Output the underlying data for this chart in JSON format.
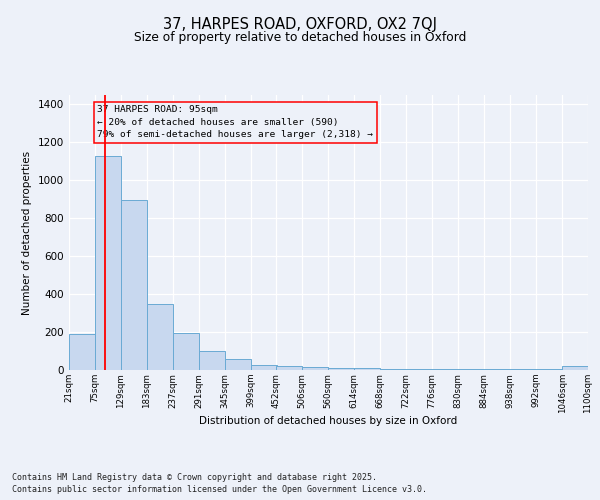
{
  "title1": "37, HARPES ROAD, OXFORD, OX2 7QJ",
  "title2": "Size of property relative to detached houses in Oxford",
  "xlabel": "Distribution of detached houses by size in Oxford",
  "ylabel": "Number of detached properties",
  "annotation_line1": "37 HARPES ROAD: 95sqm",
  "annotation_line2": "← 20% of detached houses are smaller (590)",
  "annotation_line3": "79% of semi-detached houses are larger (2,318) →",
  "bar_left_edges": [
    21,
    75,
    129,
    183,
    237,
    291,
    345,
    399,
    452,
    506,
    560,
    614,
    668,
    722,
    776,
    830,
    884,
    938,
    992,
    1046
  ],
  "bar_widths": [
    54,
    54,
    54,
    54,
    54,
    54,
    54,
    54,
    54,
    54,
    54,
    54,
    54,
    54,
    54,
    54,
    54,
    54,
    54,
    54
  ],
  "bar_heights": [
    190,
    1130,
    895,
    350,
    195,
    100,
    58,
    25,
    20,
    15,
    12,
    8,
    5,
    5,
    5,
    5,
    5,
    5,
    5,
    20
  ],
  "bar_color": "#c8d8ef",
  "bar_edge_color": "#6aaad4",
  "red_line_x": 95,
  "xlim": [
    21,
    1100
  ],
  "ylim": [
    0,
    1450
  ],
  "yticks": [
    0,
    200,
    400,
    600,
    800,
    1000,
    1200,
    1400
  ],
  "tick_labels": [
    "21sqm",
    "75sqm",
    "129sqm",
    "183sqm",
    "237sqm",
    "291sqm",
    "345sqm",
    "399sqm",
    "452sqm",
    "506sqm",
    "560sqm",
    "614sqm",
    "668sqm",
    "722sqm",
    "776sqm",
    "830sqm",
    "884sqm",
    "938sqm",
    "992sqm",
    "1046sqm",
    "1100sqm"
  ],
  "background_color": "#edf1f9",
  "grid_color": "#ffffff",
  "footer_line1": "Contains HM Land Registry data © Crown copyright and database right 2025.",
  "footer_line2": "Contains public sector information licensed under the Open Government Licence v3.0."
}
